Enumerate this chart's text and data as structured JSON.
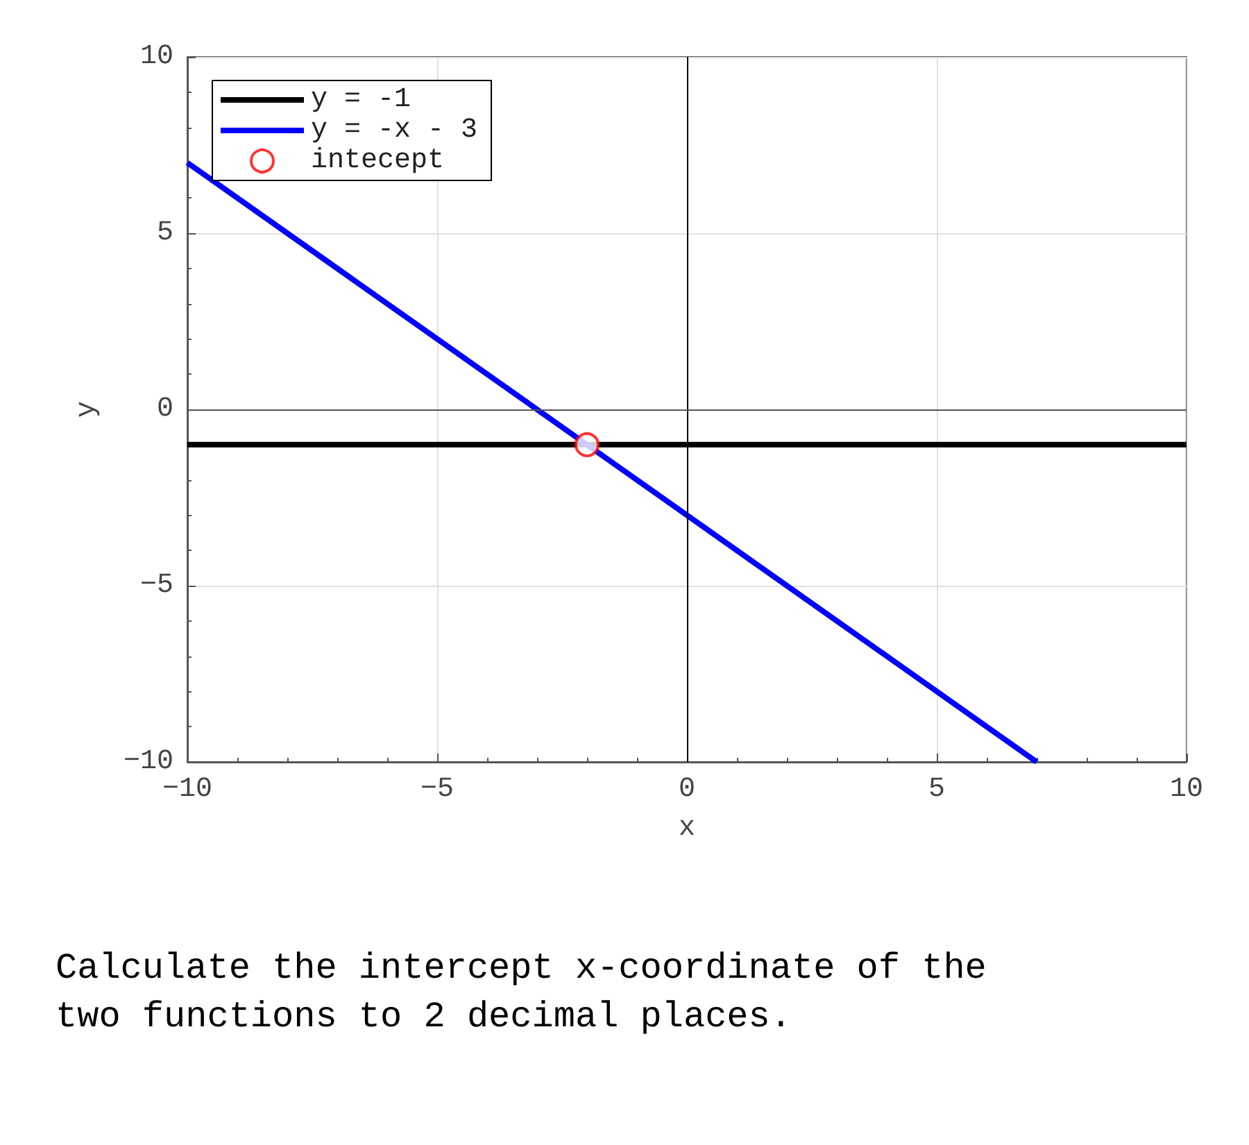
{
  "chart_data": {
    "type": "line",
    "xlabel": "x",
    "ylabel": "y",
    "xlim": [
      -10,
      10
    ],
    "xticks": [
      -10,
      -5,
      0,
      5,
      10
    ],
    "ylim": [
      -10,
      10
    ],
    "yticks": [
      -10,
      -5,
      0,
      5,
      10
    ],
    "grid": true,
    "legend": "top left",
    "line_style": "solid",
    "series": [
      {
        "name": "y = -1",
        "color": "#000000",
        "x": [
          -10,
          10
        ],
        "values": [
          -1,
          -1
        ]
      },
      {
        "name": "y = -x - 3",
        "color": "#0000ff",
        "x": [
          -10,
          7
        ],
        "values": [
          7,
          -10
        ]
      },
      {
        "name": "intecept",
        "type": "scatter",
        "marker": "circle",
        "color": "#ff0000",
        "x": [
          -2
        ],
        "values": [
          -1
        ]
      }
    ],
    "ref_lines": [
      {
        "axis": "x",
        "value": 0,
        "color": "#000000"
      },
      {
        "axis": "y",
        "value": 0,
        "color": "#555555"
      }
    ],
    "annotations": [
      "Calculate the intercept x-coordinate of the two functions to 2 decimal places."
    ]
  }
}
